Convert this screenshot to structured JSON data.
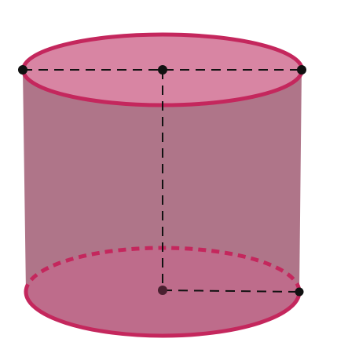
{
  "figure": {
    "kind": "cylinder",
    "colors": {
      "lateral_fill": "#a8697f",
      "top_fill": "#d67e9e",
      "bottom_fill": "#c36a8c",
      "edge_stroke": "#c4275d",
      "hidden_edge_stroke": "#c4275d",
      "guide_line": "#111111",
      "point_fill": "#111111",
      "point_fill_hidden": "#4a2030"
    },
    "points": [
      {
        "id": "top-left",
        "hidden": false
      },
      {
        "id": "top-center",
        "hidden": false
      },
      {
        "id": "top-right",
        "hidden": false
      },
      {
        "id": "bottom-center",
        "hidden": true
      },
      {
        "id": "bottom-right",
        "hidden": false
      }
    ]
  }
}
